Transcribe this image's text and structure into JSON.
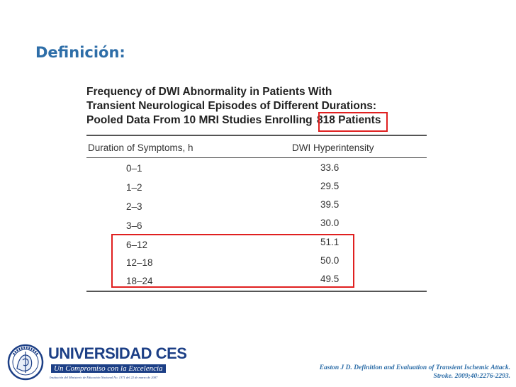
{
  "slide": {
    "title": "Definición:"
  },
  "table": {
    "caption_line1": "Frequency of DWI Abnormality in Patients With",
    "caption_line2": "Transient Neurological Episodes of Different Durations:",
    "caption_line3_prefix": "Pooled Data From 10 MRI Studies Enrolling",
    "caption_line3_highlight": "818 Patients",
    "columns": [
      "Duration of Symptoms, h",
      "DWI Hyperintensity"
    ],
    "rows": [
      {
        "duration": "0–1",
        "dwi": "33.6"
      },
      {
        "duration": "1–2",
        "dwi": "29.5"
      },
      {
        "duration": "2–3",
        "dwi": "39.5"
      },
      {
        "duration": "3–6",
        "dwi": "30.0"
      },
      {
        "duration": "6–12",
        "dwi": "51.1"
      },
      {
        "duration": "12–18",
        "dwi": "50.0"
      },
      {
        "duration": "18–24",
        "dwi": "49.5"
      }
    ]
  },
  "logo": {
    "name": "UNIVERSIDAD CES",
    "slogan": "Un Compromiso con la Excelencia",
    "fine_print": "Institución del Ministerio de Educación Nacional No. 1371 del 22 de marzo de 2007"
  },
  "citation": {
    "line1": "Easton J D. Definition and Evaluation of Transient Ischemic Attack.",
    "line2": "Stroke. 2009;40:2276-2293."
  },
  "colors": {
    "title": "#2e6ea8",
    "highlight_box": "#e02020",
    "logo_blue": "#1c3f86"
  }
}
